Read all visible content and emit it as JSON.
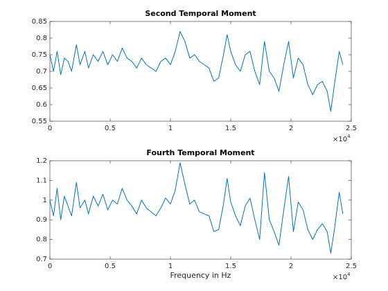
{
  "chart_data": [
    {
      "type": "line",
      "title": "Second Temporal Moment",
      "color": "#0072bd",
      "x": [
        0,
        300,
        600,
        900,
        1200,
        1500,
        1800,
        2200,
        2500,
        2900,
        3200,
        3600,
        4000,
        4400,
        4800,
        5200,
        5600,
        6000,
        6400,
        6800,
        7200,
        7600,
        8000,
        8400,
        8800,
        9200,
        9600,
        10000,
        10400,
        10800,
        11200,
        11600,
        12000,
        12400,
        12800,
        13200,
        13600,
        14000,
        14400,
        14700,
        15000,
        15400,
        15800,
        16200,
        16600,
        17000,
        17400,
        17800,
        18200,
        18600,
        19000,
        19400,
        19800,
        20200,
        20600,
        21000,
        21400,
        21800,
        22200,
        22600,
        23000,
        23300,
        23600,
        24000,
        24300
      ],
      "values": [
        0.75,
        0.7,
        0.76,
        0.69,
        0.74,
        0.73,
        0.7,
        0.78,
        0.72,
        0.76,
        0.71,
        0.75,
        0.73,
        0.76,
        0.72,
        0.75,
        0.73,
        0.77,
        0.74,
        0.73,
        0.71,
        0.74,
        0.72,
        0.71,
        0.7,
        0.73,
        0.74,
        0.72,
        0.76,
        0.82,
        0.79,
        0.74,
        0.75,
        0.73,
        0.72,
        0.71,
        0.67,
        0.68,
        0.75,
        0.81,
        0.76,
        0.72,
        0.7,
        0.75,
        0.76,
        0.7,
        0.66,
        0.79,
        0.7,
        0.68,
        0.64,
        0.72,
        0.79,
        0.68,
        0.74,
        0.72,
        0.66,
        0.63,
        0.66,
        0.67,
        0.64,
        0.58,
        0.66,
        0.76,
        0.72
      ],
      "xlim": [
        0,
        25000
      ],
      "xticks": [
        {
          "value": 0,
          "label": "0"
        },
        {
          "value": 5000,
          "label": "0.5"
        },
        {
          "value": 10000,
          "label": "1"
        },
        {
          "value": 15000,
          "label": "1.5"
        },
        {
          "value": 20000,
          "label": "2"
        },
        {
          "value": 25000,
          "label": "2.5"
        }
      ],
      "x_multiplier": {
        "base": "×10",
        "exponent": "4"
      },
      "ylim": [
        0.55,
        0.85
      ],
      "yticks": [
        0.55,
        0.6,
        0.65,
        0.7,
        0.75,
        0.8,
        0.85
      ]
    },
    {
      "type": "line",
      "title": "Fourth Temporal Moment",
      "color": "#0072bd",
      "xlabel": "Frequency in Hz",
      "x": [
        0,
        300,
        600,
        900,
        1200,
        1500,
        1800,
        2200,
        2500,
        2900,
        3200,
        3600,
        4000,
        4400,
        4800,
        5200,
        5600,
        6000,
        6400,
        6800,
        7200,
        7600,
        8000,
        8400,
        8800,
        9200,
        9600,
        10000,
        10400,
        10800,
        11200,
        11600,
        12000,
        12400,
        12800,
        13200,
        13600,
        14000,
        14400,
        14700,
        15000,
        15400,
        15800,
        16200,
        16600,
        17000,
        17400,
        17800,
        18200,
        18600,
        19000,
        19400,
        19800,
        20200,
        20600,
        21000,
        21400,
        21800,
        22200,
        22600,
        23000,
        23300,
        23600,
        24000,
        24300
      ],
      "values": [
        1.0,
        0.92,
        1.06,
        0.9,
        1.02,
        0.97,
        0.92,
        1.09,
        0.96,
        1.0,
        0.93,
        1.02,
        0.97,
        1.03,
        0.95,
        1.0,
        0.98,
        1.06,
        1.0,
        0.97,
        0.93,
        1.0,
        0.96,
        0.94,
        0.92,
        0.96,
        1.01,
        0.98,
        1.05,
        1.19,
        1.08,
        0.98,
        1.0,
        0.94,
        0.93,
        0.92,
        0.84,
        0.85,
        0.98,
        1.11,
        0.99,
        0.92,
        0.87,
        0.97,
        1.01,
        0.9,
        0.8,
        1.14,
        0.9,
        0.84,
        0.77,
        0.95,
        1.12,
        0.84,
        0.99,
        0.95,
        0.85,
        0.8,
        0.85,
        0.88,
        0.84,
        0.73,
        0.85,
        1.04,
        0.93
      ],
      "xlim": [
        0,
        25000
      ],
      "xticks": [
        {
          "value": 0,
          "label": "0"
        },
        {
          "value": 5000,
          "label": "0.5"
        },
        {
          "value": 10000,
          "label": "1"
        },
        {
          "value": 15000,
          "label": "1.5"
        },
        {
          "value": 20000,
          "label": "2"
        },
        {
          "value": 25000,
          "label": "2.5"
        }
      ],
      "x_multiplier": {
        "base": "×10",
        "exponent": "4"
      },
      "ylim": [
        0.7,
        1.2
      ],
      "yticks": [
        0.7,
        0.8,
        0.9,
        1,
        1.1,
        1.2
      ]
    }
  ]
}
